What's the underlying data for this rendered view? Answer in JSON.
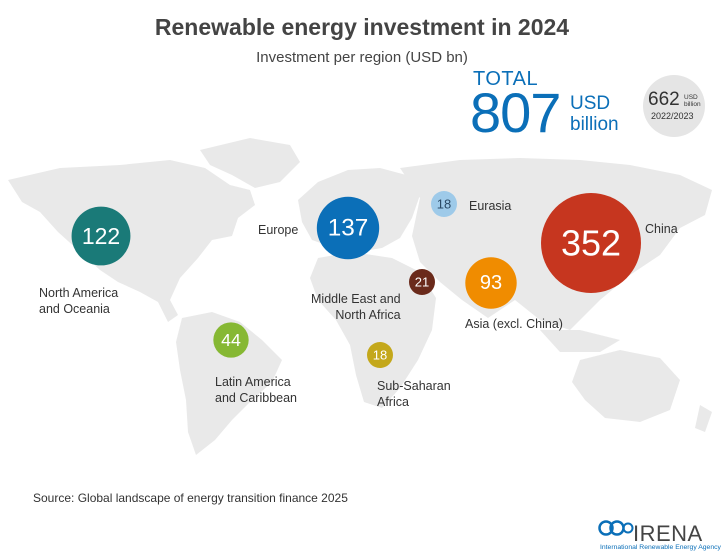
{
  "chart_data": {
    "type": "bubble-map",
    "title": "Renewable energy investment in 2024",
    "subtitle": "Investment per region (USD bn)",
    "total": {
      "label": "TOTAL",
      "value": "807",
      "unit": "USD billion"
    },
    "previous": {
      "value": "662",
      "unit": "USD billion",
      "period": "2022/2023"
    },
    "regions": [
      {
        "id": "north-america",
        "name": "North America and Oceania",
        "value": 122,
        "color": "#1a7a78"
      },
      {
        "id": "latin-america",
        "name": "Latin America and Caribbean",
        "value": 44,
        "color": "#86b833"
      },
      {
        "id": "europe",
        "name": "Europe",
        "value": 137,
        "color": "#0b6fb8"
      },
      {
        "id": "eurasia",
        "name": "Eurasia",
        "value": 18,
        "color": "#9ecae9"
      },
      {
        "id": "middle-east",
        "name": "Middle East and North Africa",
        "value": 21,
        "color": "#6a2a1b"
      },
      {
        "id": "sub-saharan",
        "name": "Sub-Saharan Africa",
        "value": 18,
        "color": "#c4a81b"
      },
      {
        "id": "asia",
        "name": "Asia (excl. China)",
        "value": 93,
        "color": "#f08c00"
      },
      {
        "id": "china",
        "name": "China",
        "value": 352,
        "color": "#c6361f"
      }
    ],
    "source": "Source: Global landscape of energy transition finance 2025"
  },
  "branding": {
    "name": "IRENA",
    "tagline": "International Renewable Energy Agency",
    "accent": "#0b6fb8"
  }
}
